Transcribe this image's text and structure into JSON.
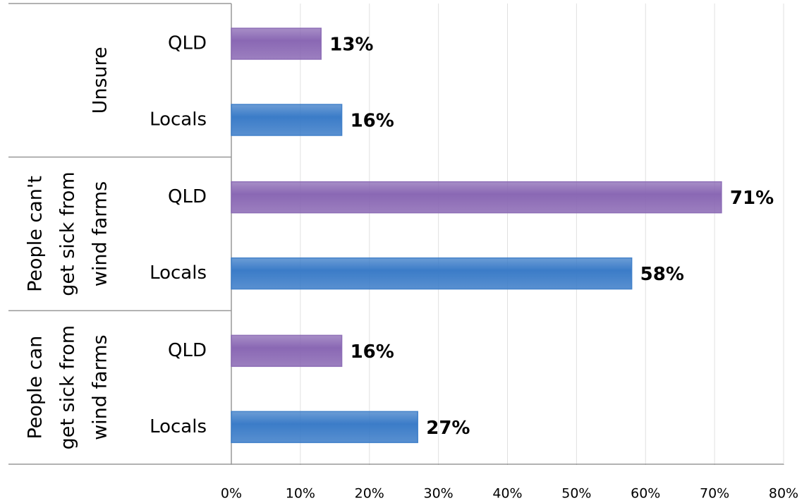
{
  "chart_data": {
    "type": "bar",
    "orientation": "horizontal",
    "categories": [
      [
        "Unsure"
      ],
      [
        "People can't",
        "get sick from",
        "wind farms"
      ],
      [
        "People can",
        "get sick from",
        "wind farms"
      ]
    ],
    "series": [
      {
        "name": "QLD",
        "color": "#8a68b4",
        "values": [
          13,
          71,
          16
        ],
        "value_labels": [
          "13%",
          "71%",
          "16%"
        ]
      },
      {
        "name": "Locals",
        "color": "#3b7cc8",
        "values": [
          16,
          58,
          27
        ],
        "value_labels": [
          "16%",
          "58%",
          "27%"
        ]
      }
    ],
    "xlim": [
      0,
      80
    ],
    "xticks": [
      {
        "value": 0,
        "label": "0%"
      },
      {
        "value": 10,
        "label": "10%"
      },
      {
        "value": 20,
        "label": "20%"
      },
      {
        "value": 30,
        "label": "30%"
      },
      {
        "value": 40,
        "label": "40%"
      },
      {
        "value": 50,
        "label": "50%"
      },
      {
        "value": 60,
        "label": "60%"
      },
      {
        "value": 70,
        "label": "70%"
      },
      {
        "value": 80,
        "label": "80%"
      }
    ],
    "grid": true
  }
}
